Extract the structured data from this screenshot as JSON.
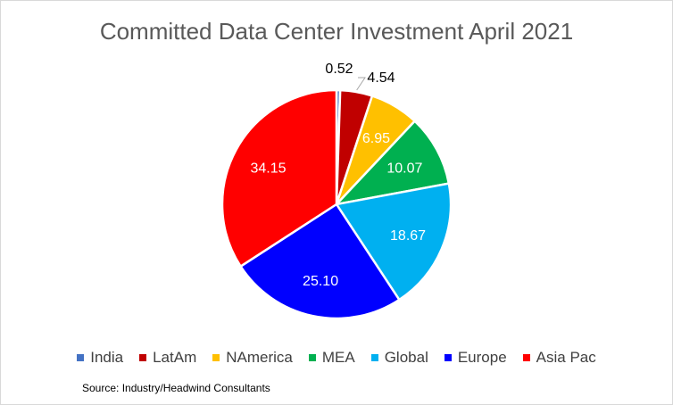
{
  "chart_data": {
    "type": "pie",
    "title": "Committed Data Center Investment April 2021",
    "slices": [
      {
        "name": "India",
        "value": 0.52,
        "label": "0.52",
        "color": "#4472C4"
      },
      {
        "name": "LatAm",
        "value": 4.54,
        "label": "4.54",
        "color": "#C00000"
      },
      {
        "name": "NAmerica",
        "value": 6.95,
        "label": "6.95",
        "color": "#FFC000"
      },
      {
        "name": "MEA",
        "value": 10.07,
        "label": "10.07",
        "color": "#00B050"
      },
      {
        "name": "Global",
        "value": 18.67,
        "label": "18.67",
        "color": "#00B0F0"
      },
      {
        "name": "Europe",
        "value": 25.1,
        "label": "25.10",
        "color": "#0000FF"
      },
      {
        "name": "Asia Pac",
        "value": 34.15,
        "label": "34.15",
        "color": "#FF0000"
      }
    ],
    "legend_position": "bottom",
    "source": "Source: Industry/Headwind Consultants"
  }
}
